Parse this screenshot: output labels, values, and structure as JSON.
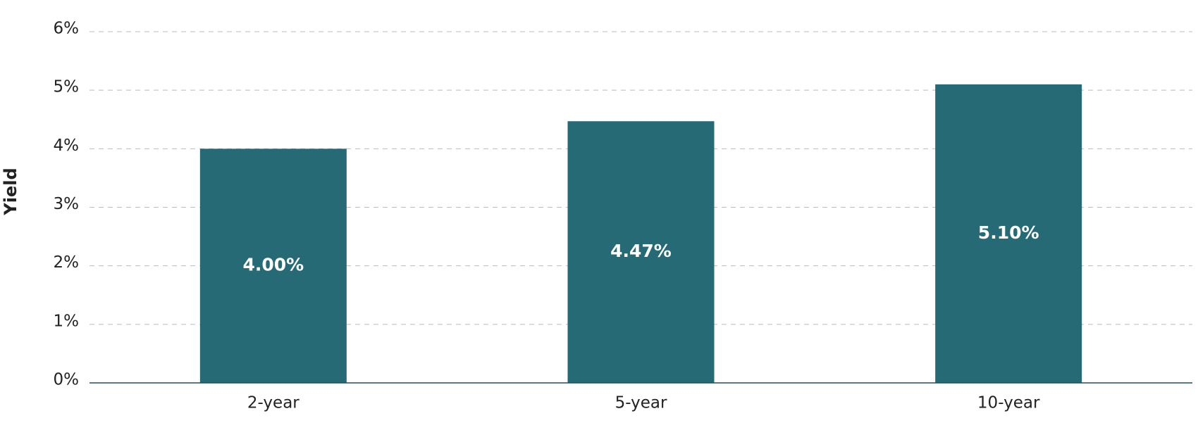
{
  "chart_data": {
    "type": "bar",
    "y_axis_label": "Yield",
    "categories": [
      "2-year",
      "5-year",
      "10-year"
    ],
    "values": [
      4.0,
      4.47,
      5.1
    ],
    "value_labels": [
      "4.00%",
      "4.47%",
      "5.10%"
    ],
    "color": "#266a75",
    "ylim": [
      0,
      6
    ],
    "yticks": [
      {
        "value": 0,
        "label": "0%"
      },
      {
        "value": 1,
        "label": "1%"
      },
      {
        "value": 2,
        "label": "2%"
      },
      {
        "value": 3,
        "label": "3%"
      },
      {
        "value": 4,
        "label": "4%"
      },
      {
        "value": 5,
        "label": "5%"
      },
      {
        "value": 6,
        "label": "6%"
      }
    ],
    "grid": true
  }
}
